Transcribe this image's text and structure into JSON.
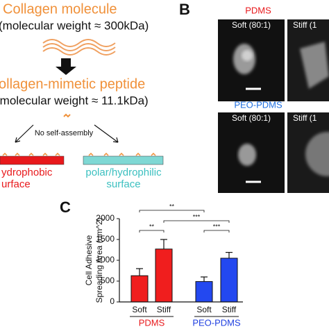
{
  "panel_a": {
    "title1": "Collagen molecule",
    "mw1": "(molecular weight ≈ 300kDa)",
    "title2": "ollagen-mimetic peptide",
    "mw2": "(molecular weight ≈ 11.1kDa)",
    "note": "No self-assembly",
    "left_surface": [
      "ydrophobic",
      "urface"
    ],
    "right_surface": [
      "polar/hydrophilic",
      "surface"
    ]
  },
  "panel_b": {
    "label": "B",
    "row1": "PDMS",
    "row2": "PEO-PDMS",
    "soft": "Soft (80:1)",
    "stiff": "Stiff (1"
  },
  "chart_data": {
    "type": "bar",
    "panel_label": "C",
    "ylabel": [
      "Cell Adhesive",
      "Spreading Area (um^2)"
    ],
    "categories": [
      "Soft",
      "Stiff",
      "Soft",
      "Stiff"
    ],
    "groups": [
      "PDMS",
      "PEO-PDMS"
    ],
    "group_colors": [
      "#e8191c",
      "#1f3fe0"
    ],
    "values": [
      630,
      1270,
      490,
      1050
    ],
    "errors": [
      170,
      230,
      110,
      140
    ],
    "colors": [
      "#f01e1e",
      "#f01e1e",
      "#2348f0",
      "#2348f0"
    ],
    "significance": [
      "**",
      "***",
      "***",
      "**"
    ],
    "ylim": [
      0,
      2000
    ],
    "yticks": [
      0,
      500,
      1000,
      1500,
      2000
    ]
  }
}
